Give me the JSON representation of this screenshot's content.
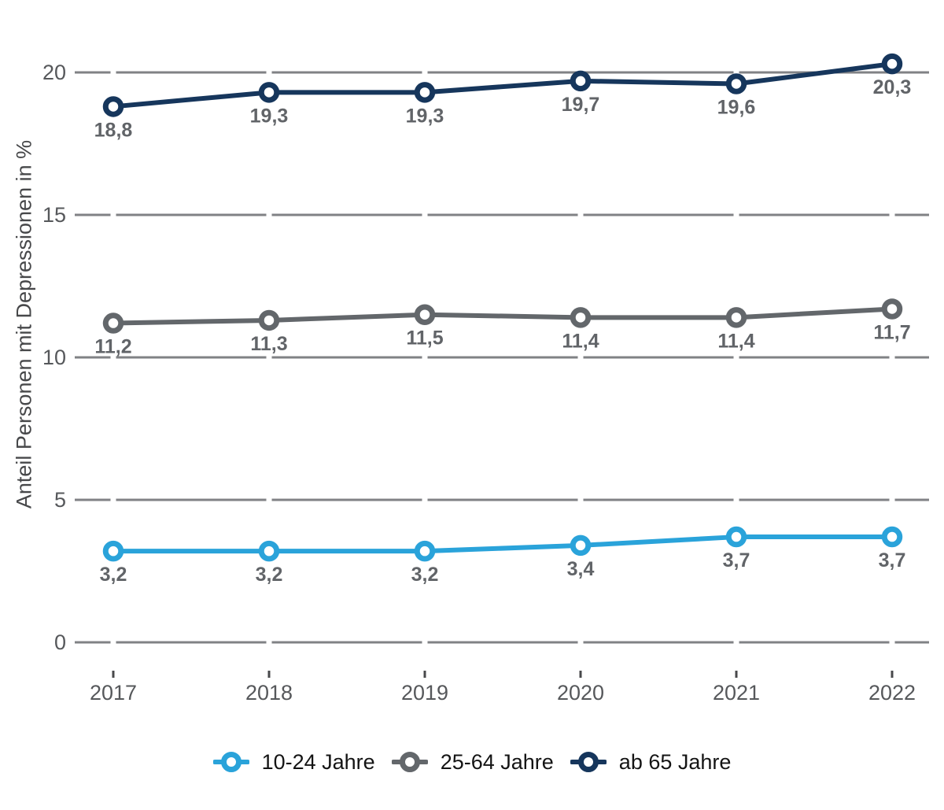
{
  "chart_data": {
    "type": "line",
    "title": "",
    "ylabel": "Anteil Personen mit Depressionen in %",
    "xlabel": "",
    "categories": [
      "2017",
      "2018",
      "2019",
      "2020",
      "2021",
      "2022"
    ],
    "yticks": [
      0,
      5,
      10,
      15,
      20
    ],
    "ytick_labels": [
      "0",
      "5",
      "10",
      "15",
      "20"
    ],
    "ylim": [
      0,
      21
    ],
    "grid": "horizontal",
    "legend_position": "bottom-center",
    "series": [
      {
        "name": "10-24 Jahre",
        "color": "#2aa3da",
        "values": [
          3.2,
          3.2,
          3.2,
          3.4,
          3.7,
          3.7
        ],
        "value_labels": [
          "3,2",
          "3,2",
          "3,2",
          "3,4",
          "3,7",
          "3,7"
        ]
      },
      {
        "name": "25-64 Jahre",
        "color": "#63676b",
        "values": [
          11.2,
          11.3,
          11.5,
          11.4,
          11.4,
          11.7
        ],
        "value_labels": [
          "11,2",
          "11,3",
          "11,5",
          "11,4",
          "11,4",
          "11,7"
        ]
      },
      {
        "name": "ab 65 Jahre",
        "color": "#16365c",
        "values": [
          18.8,
          19.3,
          19.3,
          19.7,
          19.6,
          20.3
        ],
        "value_labels": [
          "18,8",
          "19,3",
          "19,3",
          "19,7",
          "19,6",
          "20,3"
        ]
      }
    ],
    "grid_color": "#808285",
    "axis_text_color": "#56585b",
    "tick_mark_color": "#48494b",
    "value_label_color": "#616468"
  }
}
